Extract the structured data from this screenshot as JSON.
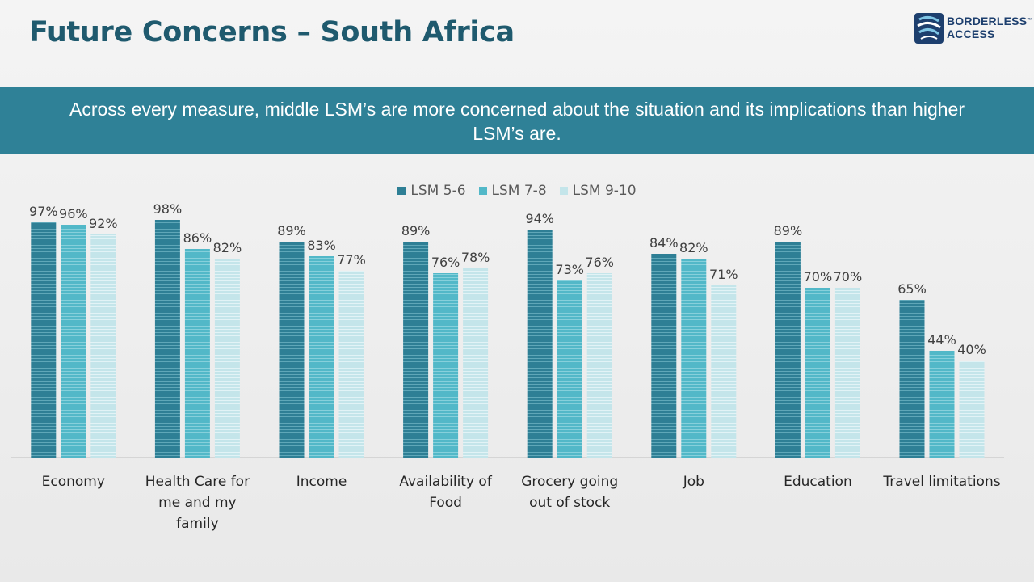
{
  "title": "Future Concerns – South Africa",
  "logo": {
    "line1": "BORDERLESS",
    "tm": "™",
    "line2": "ACCESS",
    "icon": "borderless-access-logo-icon"
  },
  "banner": "Across every measure, middle LSM’s are more concerned about the situation and its implications than higher LSM’s are.",
  "colors": {
    "accent": "#2f8197",
    "title": "#1f5a6e",
    "series": [
      "#2e7f95",
      "#52b8c8",
      "#c4e5ea"
    ]
  },
  "chart_data": {
    "type": "bar",
    "categories": [
      "Economy",
      "Health Care for me and my family",
      "Income",
      "Availability of Food",
      "Grocery going out of stock",
      "Job",
      "Education",
      "Travel limitations"
    ],
    "category_lines": [
      [
        "Economy"
      ],
      [
        "Health Care for",
        "me and my",
        "family"
      ],
      [
        "Income"
      ],
      [
        "Availability of",
        "Food"
      ],
      [
        "Grocery going",
        "out of stock"
      ],
      [
        "Job"
      ],
      [
        "Education"
      ],
      [
        "Travel limitations"
      ]
    ],
    "series": [
      {
        "name": "LSM 5-6",
        "values": [
          97,
          98,
          89,
          89,
          94,
          84,
          89,
          65
        ]
      },
      {
        "name": "LSM 7-8",
        "values": [
          96,
          86,
          83,
          76,
          73,
          82,
          70,
          44
        ]
      },
      {
        "name": "LSM 9-10",
        "values": [
          92,
          82,
          77,
          78,
          76,
          71,
          70,
          40
        ]
      }
    ],
    "value_suffix": "%",
    "ylim": [
      0,
      100
    ],
    "grid": false,
    "legend": "top-center",
    "title": "",
    "xlabel": "",
    "ylabel": ""
  }
}
